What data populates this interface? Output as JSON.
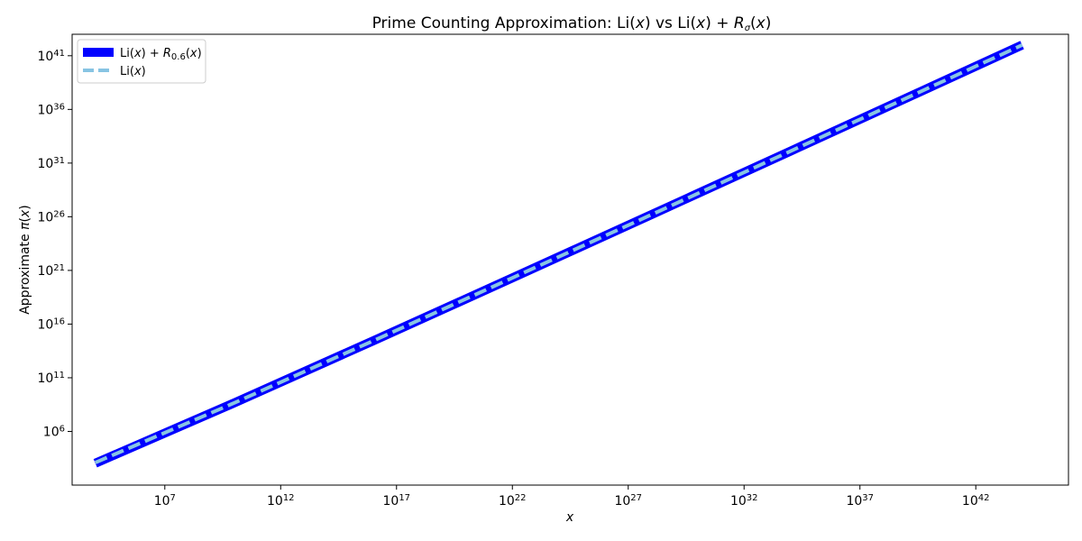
{
  "chart_data": {
    "type": "line",
    "title_parts": {
      "prefix": "Prime Counting Approximation: Li(",
      "var1": "x",
      "mid": ") vs Li(",
      "var2": "x",
      "plus": ") + ",
      "R": "R",
      "sigma": "σ",
      "open": "(",
      "var3": "x",
      "close": ")"
    },
    "xlabel": "x",
    "ylabel_parts": {
      "prefix": "Approximate ",
      "pi": "π",
      "open": "(",
      "x": "x",
      "close": ")"
    },
    "x_scale": "log",
    "y_scale": "log",
    "xlim": [
      1000.0,
      1e+46
    ],
    "ylim": [
      10.0,
      1e+43
    ],
    "x_tick_exponents": [
      "7",
      "12",
      "17",
      "22",
      "27",
      "32",
      "37",
      "42"
    ],
    "y_tick_exponents": [
      "6",
      "11",
      "16",
      "21",
      "26",
      "31",
      "36",
      "41"
    ],
    "tick_base": "10",
    "legend_position": "top-left",
    "series": [
      {
        "name_parts": {
          "a": "Li(",
          "b": "x",
          "c": ") + ",
          "R": "R",
          "sub": "0.6",
          "d": "(",
          "e": "x",
          "f": ")"
        },
        "color": "#0000ff",
        "style": "solid",
        "x": [
          10000.0,
          10000000000.0,
          1e+16,
          1e+22,
          1e+28,
          1e+34,
          1e+40,
          1e+44
        ],
        "y": [
          1086.0,
          455000000.0,
          279000000000000.0,
          2.01e+20,
          1.56e+26,
          1.28e+32,
          1.09e+38,
          9.9e+41
        ]
      },
      {
        "name_parts": {
          "a": "Li(",
          "b": "x",
          "c": ")"
        },
        "color": "#87c4e3",
        "style": "dashed",
        "x": [
          10000.0,
          10000000000.0,
          1e+16,
          1e+22,
          1e+28,
          1e+34,
          1e+40,
          1e+44
        ],
        "y": [
          1246.0,
          455000000.0,
          279000000000000.0,
          2.01e+20,
          1.56e+26,
          1.28e+32,
          1.09e+38,
          9.9e+41
        ]
      }
    ]
  }
}
